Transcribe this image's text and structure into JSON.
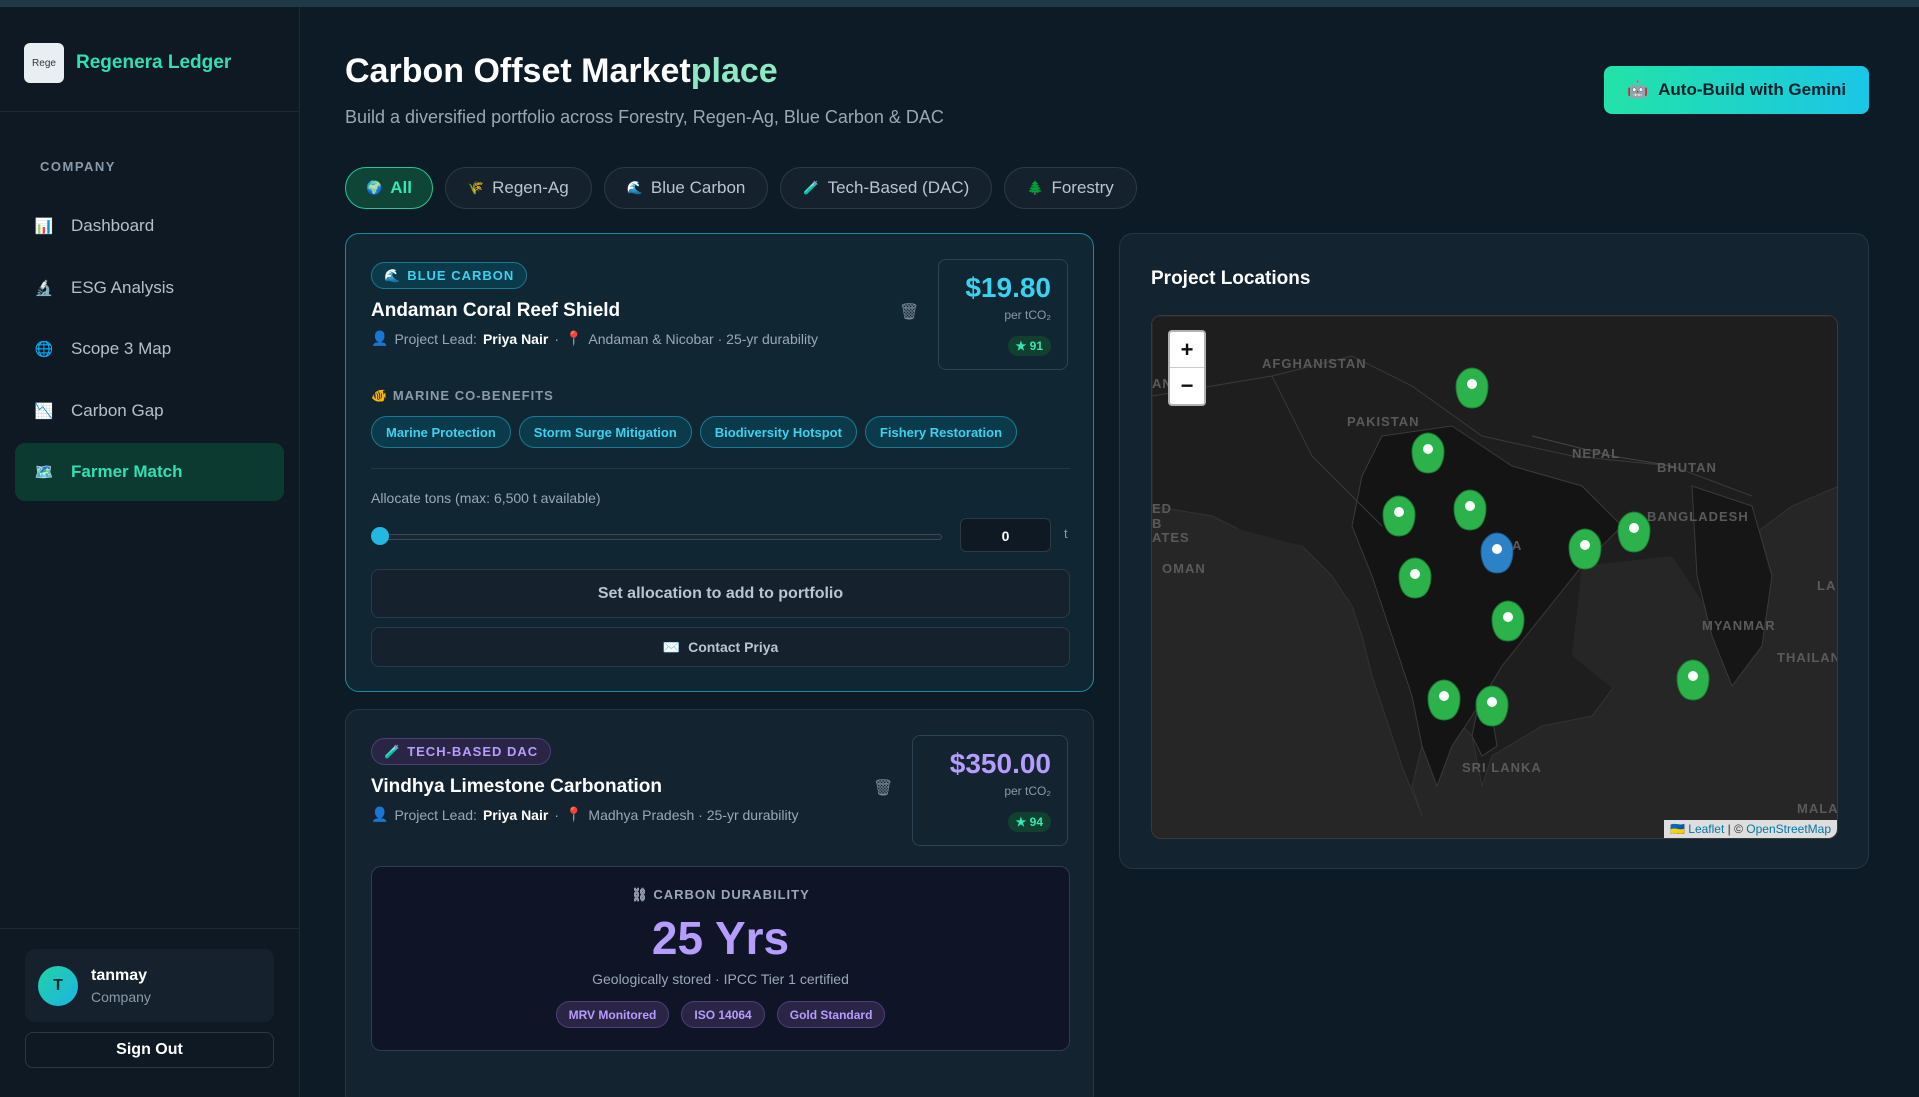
{
  "app": {
    "name": "Regenera Ledger",
    "logo_alt": "Rege"
  },
  "sidebar": {
    "section_label": "COMPANY",
    "items": [
      {
        "label": "Dashboard",
        "icon": "📊"
      },
      {
        "label": "ESG Analysis",
        "icon": "🔬"
      },
      {
        "label": "Scope 3 Map",
        "icon": "🌐"
      },
      {
        "label": "Carbon Gap",
        "icon": "📉"
      },
      {
        "label": "Farmer Match",
        "icon": "🗺️",
        "active": true
      }
    ],
    "user": {
      "initial": "T",
      "name": "tanmay",
      "role": "Company"
    },
    "signout_label": "Sign Out"
  },
  "header": {
    "title_part1": "Carbon Offset Market",
    "title_part2": "place",
    "subtitle": "Build a diversified portfolio across Forestry, Regen-Ag, Blue Carbon & DAC",
    "gemini_button": "Auto-Build with Gemini",
    "gemini_icon": "🤖"
  },
  "filters": [
    {
      "label": "All",
      "icon": "🌍",
      "active": true
    },
    {
      "label": "Regen-Ag",
      "icon": "🌾"
    },
    {
      "label": "Blue Carbon",
      "icon": "🌊"
    },
    {
      "label": "Tech-Based (DAC)",
      "icon": "🧪"
    },
    {
      "label": "Forestry",
      "icon": "🌲"
    }
  ],
  "projects": [
    {
      "badge": "BLUE CARBON",
      "badge_icon": "🌊",
      "name": "Andaman Coral Reef Shield",
      "lead_label": "Project Lead:",
      "lead": "Priya Nair",
      "location": "Andaman & Nicobar · 25-yr durability",
      "price": "$19.80",
      "per": "per tCO₂",
      "score": "★ 91",
      "section": "MARINE CO-BENEFITS",
      "tags": [
        "Marine Protection",
        "Storm Surge Mitigation",
        "Biodiversity Hotspot",
        "Fishery Restoration"
      ],
      "alloc_label": "Allocate tons (max: 6,500 t available)",
      "alloc_value": "0",
      "alloc_unit": "t",
      "alloc_fraction": 0,
      "primary_button": "Set allocation to add to portfolio",
      "contact_button": "Contact Priya"
    },
    {
      "badge": "TECH-BASED DAC",
      "badge_icon": "🧪",
      "name": "Vindhya Limestone Carbonation",
      "lead_label": "Project Lead:",
      "lead": "Priya Nair",
      "location": "Madhya Pradesh · 25-yr durability",
      "price": "$350.00",
      "per": "per tCO₂",
      "score": "★ 94",
      "durability_label": "CARBON DURABILITY",
      "durability_value": "25 Yrs",
      "durability_note": "Geologically stored · IPCC Tier 1 certified",
      "tags": [
        "MRV Monitored",
        "ISO 14064",
        "Gold Standard"
      ]
    }
  ],
  "map": {
    "title": "Project Locations",
    "zoom_in": "+",
    "zoom_out": "−",
    "attribution_leaflet": "Leaflet",
    "attribution_sep": " | © ",
    "attribution_osm": "OpenStreetMap",
    "labels": [
      "AFGHANISTAN",
      "PAKISTAN",
      "NEPAL",
      "BHUTAN",
      "BANGLADESH",
      "INDIA",
      "OMAN",
      "MYANMAR",
      "THAILAND",
      "SRI LANKA",
      "MALAY",
      "AN",
      "ED",
      "B",
      "ATES",
      "LA"
    ]
  }
}
